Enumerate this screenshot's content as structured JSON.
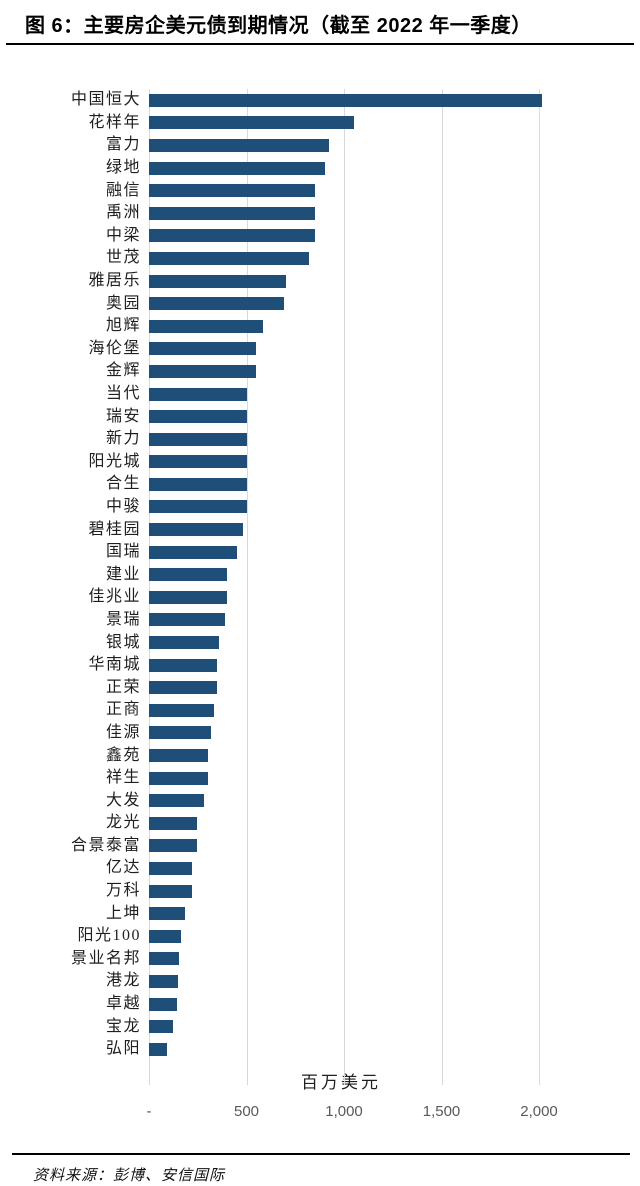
{
  "header": {
    "title": "图 6：主要房企美元债到期情况（截至 2022 年一季度）"
  },
  "footer": {
    "source": "资料来源：彭博、安信国际"
  },
  "chart_data": {
    "type": "bar",
    "orientation": "horizontal",
    "title": "主要房企美元债到期情况（截至 2022 年一季度）",
    "xlabel": "百万美元",
    "xlim": [
      0,
      2000
    ],
    "grid": true,
    "legend": "none",
    "bar_color": "#1F4E79",
    "gridline_color": "#D9D9D9",
    "tick_color": "#595959",
    "xticks": [
      {
        "label": "-",
        "value": 0
      },
      {
        "label": "500",
        "value": 500
      },
      {
        "label": "1,000",
        "value": 1000
      },
      {
        "label": "1,500",
        "value": 1500
      },
      {
        "label": "2,000",
        "value": 2000
      }
    ],
    "categories": [
      "中国恒大",
      "花样年",
      "富力",
      "绿地",
      "融信",
      "禹洲",
      "中梁",
      "世茂",
      "雅居乐",
      "奥园",
      "旭辉",
      "海伦堡",
      "金辉",
      "当代",
      "瑞安",
      "新力",
      "阳光城",
      "合生",
      "中骏",
      "碧桂园",
      "国瑞",
      "建业",
      "佳兆业",
      "景瑞",
      "银城",
      "华南城",
      "正荣",
      "正商",
      "佳源",
      "鑫苑",
      "祥生",
      "大发",
      "龙光",
      "合景泰富",
      "亿达",
      "万科",
      "上坤",
      "阳光100",
      "景业名邦",
      "港龙",
      "卓越",
      "宝龙",
      "弘阳"
    ],
    "values": [
      2015,
      1050,
      925,
      900,
      850,
      850,
      850,
      820,
      700,
      690,
      585,
      550,
      550,
      500,
      500,
      500,
      500,
      500,
      500,
      480,
      450,
      400,
      400,
      390,
      360,
      350,
      350,
      335,
      320,
      300,
      300,
      280,
      245,
      245,
      220,
      220,
      185,
      165,
      155,
      150,
      145,
      125,
      90
    ]
  }
}
